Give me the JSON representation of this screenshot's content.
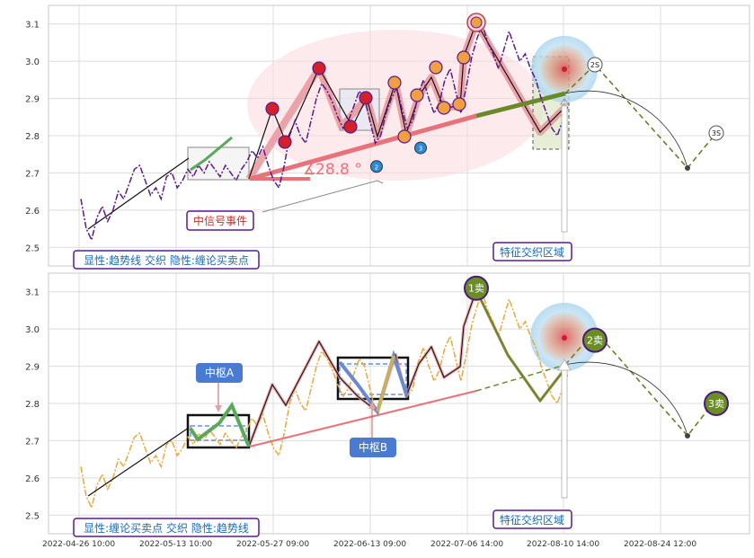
{
  "chart_data": [
    {
      "type": "line",
      "panel": "top",
      "ylim": [
        2.45,
        3.15
      ],
      "yticks": [
        "2.5",
        "2.6",
        "2.7",
        "2.8",
        "2.9",
        "3.0",
        "3.1"
      ],
      "grid": true,
      "angle_label": "28.8 °",
      "angle_marker": "∡",
      "event_label": "中信号事件",
      "zone_label": "特征交织区域",
      "legend_label": "显性:趋势线 交织 隐性:缠论买卖点",
      "projection_labels": [
        "2S",
        "3S"
      ],
      "zhongshu_points": [
        {
          "label": "1",
          "y": 2.64
        },
        {
          "label": "2",
          "y": 2.74
        },
        {
          "label": "3",
          "y": 2.79
        }
      ],
      "price_series": {
        "name": "",
        "y": [
          2.63,
          2.55,
          2.52,
          2.58,
          2.61,
          2.57,
          2.6,
          2.65,
          2.63,
          2.67,
          2.71,
          2.72,
          2.68,
          2.64,
          2.66,
          2.63,
          2.69,
          2.7,
          2.66,
          2.68,
          2.71,
          2.69,
          2.72,
          2.7,
          2.73,
          2.71,
          2.69,
          2.72,
          2.7,
          2.68,
          2.71,
          2.73,
          2.76,
          2.74,
          2.77,
          2.72,
          2.68,
          2.66,
          2.72,
          2.8,
          2.84,
          2.8,
          2.78,
          2.84,
          2.9,
          2.94,
          2.92,
          2.89,
          2.85,
          2.82,
          2.84,
          2.88,
          2.92,
          2.9,
          2.84,
          2.78,
          2.8,
          2.86,
          2.9,
          2.93,
          2.87,
          2.82,
          2.84,
          2.91,
          2.95,
          2.9,
          2.86,
          2.89,
          2.95,
          2.98,
          2.92,
          2.86,
          2.93,
          3.01,
          3.06,
          3.1,
          3.05,
          3.02,
          2.98,
          3.03,
          3.08,
          3.04,
          3.0,
          3.02,
          2.98,
          2.95,
          2.9,
          2.86,
          2.82,
          2.8,
          2.84,
          2.88
        ]
      }
    },
    {
      "type": "line",
      "panel": "bottom",
      "ylim": [
        2.45,
        3.15
      ],
      "yticks": [
        "2.5",
        "2.6",
        "2.7",
        "2.8",
        "2.9",
        "3.0",
        "3.1"
      ],
      "xticks": [
        "2022-04-26 10:00",
        "2022-05-13 10:00",
        "2022-05-27 09:00",
        "2022-06-13 09:00",
        "2022-07-06 14:00",
        "2022-08-10 14:00",
        "2022-08-24 12:00"
      ],
      "grid": true,
      "center_a_label": "中枢A",
      "center_b_label": "中枢B",
      "zone_label": "特征交织区域",
      "legend_label": "显性:缠论买卖点 交织 隐性:趋势线",
      "signals": [
        {
          "label": "1卖",
          "y": 3.1
        },
        {
          "label": "2卖",
          "y": 2.97
        },
        {
          "label": "3卖",
          "y": 2.8
        }
      ],
      "price_series": {
        "name": "",
        "y": [
          2.63,
          2.55,
          2.52,
          2.58,
          2.61,
          2.57,
          2.6,
          2.65,
          2.63,
          2.67,
          2.71,
          2.72,
          2.68,
          2.64,
          2.66,
          2.63,
          2.69,
          2.7,
          2.66,
          2.68,
          2.71,
          2.69,
          2.72,
          2.7,
          2.73,
          2.71,
          2.69,
          2.72,
          2.7,
          2.68,
          2.71,
          2.73,
          2.76,
          2.74,
          2.77,
          2.72,
          2.68,
          2.66,
          2.72,
          2.8,
          2.84,
          2.8,
          2.78,
          2.84,
          2.9,
          2.94,
          2.92,
          2.89,
          2.85,
          2.82,
          2.84,
          2.88,
          2.92,
          2.9,
          2.84,
          2.78,
          2.8,
          2.86,
          2.9,
          2.93,
          2.87,
          2.82,
          2.84,
          2.91,
          2.95,
          2.9,
          2.86,
          2.89,
          2.95,
          2.98,
          2.92,
          2.86,
          2.93,
          3.01,
          3.06,
          3.1,
          3.05,
          3.02,
          2.98,
          3.03,
          3.08,
          3.04,
          3.0,
          3.02,
          2.98,
          2.95,
          2.9,
          2.86,
          2.82,
          2.8,
          2.84,
          2.88
        ]
      }
    }
  ],
  "colors": {
    "price_top": "#5b1a8c",
    "price_bottom": "#e8a93a",
    "trend_red": "#e8727a",
    "trend_green": "#6a8a2a",
    "projection": "#6b7f2a",
    "signal_fill": "#6a8e23",
    "signal_border": "#4b1a7a",
    "label_border": "#5b1a8c",
    "label_text": "#1a6ab5",
    "center_box": "#4a7bd0"
  }
}
